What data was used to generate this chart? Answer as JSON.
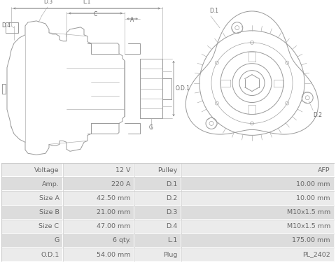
{
  "table_rows": [
    [
      "Voltage",
      "12 V",
      "Pulley",
      "AFP"
    ],
    [
      "Amp.",
      "220 A",
      "D.1",
      "10.00 mm"
    ],
    [
      "Size A",
      "42.50 mm",
      "D.2",
      "10.00 mm"
    ],
    [
      "Size B",
      "21.00 mm",
      "D.3",
      "M10x1.5 mm"
    ],
    [
      "Size C",
      "47.00 mm",
      "D.4",
      "M10x1.5 mm"
    ],
    [
      "G",
      "6 qty.",
      "L.1",
      "175.00 mm"
    ],
    [
      "O.D.1",
      "54.00 mm",
      "Plug",
      "PL_2402"
    ]
  ],
  "row_color_light": "#ebebeb",
  "row_color_dark": "#dcdcdc",
  "border_color": "#ffffff",
  "text_color": "#666666",
  "bg_color": "#ffffff",
  "line_color": "#aaaaaa",
  "draw_color": "#999999"
}
